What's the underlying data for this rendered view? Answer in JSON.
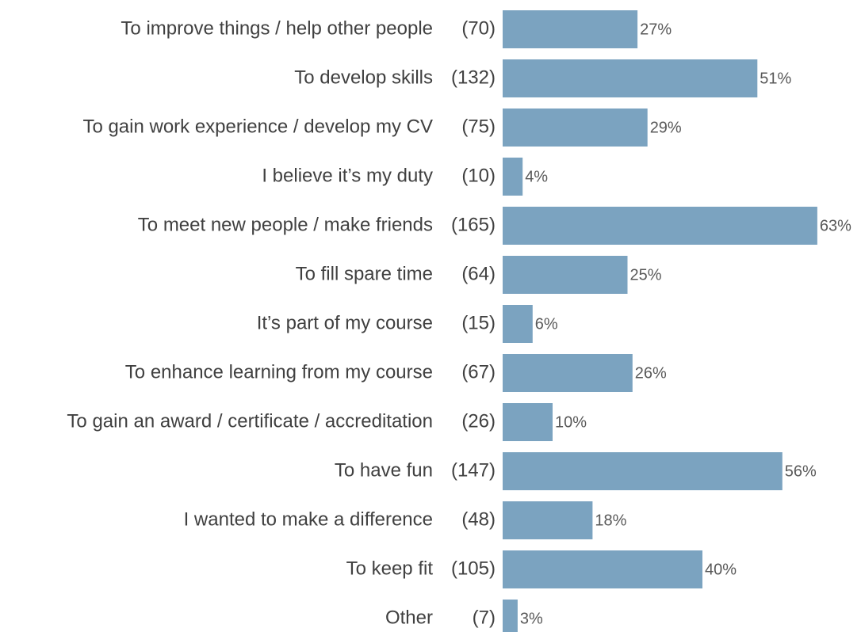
{
  "chart_data": {
    "type": "bar",
    "orientation": "horizontal",
    "categories": [
      "To improve things / help other people",
      "To develop skills",
      "To gain work experience / develop my CV",
      "I believe it’s my duty",
      "To meet new people / make friends",
      "To fill spare time",
      "It’s part of my course",
      "To enhance learning from my course",
      "To gain an award / certificate / accreditation",
      "To have fun",
      "I wanted to make a difference",
      "To keep fit",
      "Other"
    ],
    "count_labels": [
      "(70)",
      "(132)",
      "(75)",
      "(10)",
      "(165)",
      "(64)",
      "(15)",
      "(67)",
      "(26)",
      "(147)",
      "(48)",
      "(105)",
      "(7)"
    ],
    "values": [
      27,
      51,
      29,
      4,
      63,
      25,
      6,
      26,
      10,
      56,
      18,
      40,
      3
    ],
    "value_labels": [
      "27%",
      "51%",
      "29%",
      "4%",
      "63%",
      "25%",
      "6%",
      "26%",
      "10%",
      "56%",
      "18%",
      "40%",
      "3%"
    ],
    "color": "#7ba3c0"
  }
}
